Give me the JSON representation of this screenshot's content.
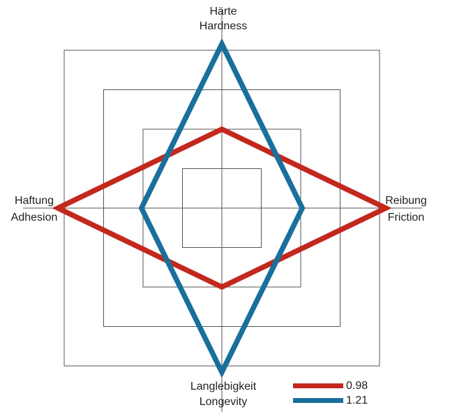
{
  "chart_data": {
    "type": "radar",
    "grid_shape": "concentric-squares",
    "rings": 4,
    "grid_color": "#545454",
    "axis_color": "#545454",
    "background_color": "#ffffff",
    "axes_order": "top, right, bottom, left",
    "axes": [
      {
        "label_de": "Härte",
        "label_en": "Hardness"
      },
      {
        "label_de": "Reibung",
        "label_en": "Friction"
      },
      {
        "label_de": "Langlebigkeit",
        "label_en": "Longevity"
      },
      {
        "label_de": "Haftung",
        "label_en": "Adhesion"
      }
    ],
    "series": [
      {
        "name": "0.98",
        "color": "#C2281D",
        "values_normalized_to_outer_ring": [
          0.5,
          1.04,
          0.5,
          1.04
        ]
      },
      {
        "name": "1.21",
        "color": "#1A6F9C",
        "values_normalized_to_outer_ring": [
          1.04,
          0.51,
          1.04,
          0.51
        ]
      }
    ],
    "legend": {
      "position": "bottom-right",
      "entries": [
        "0.98",
        "1.21"
      ]
    }
  }
}
